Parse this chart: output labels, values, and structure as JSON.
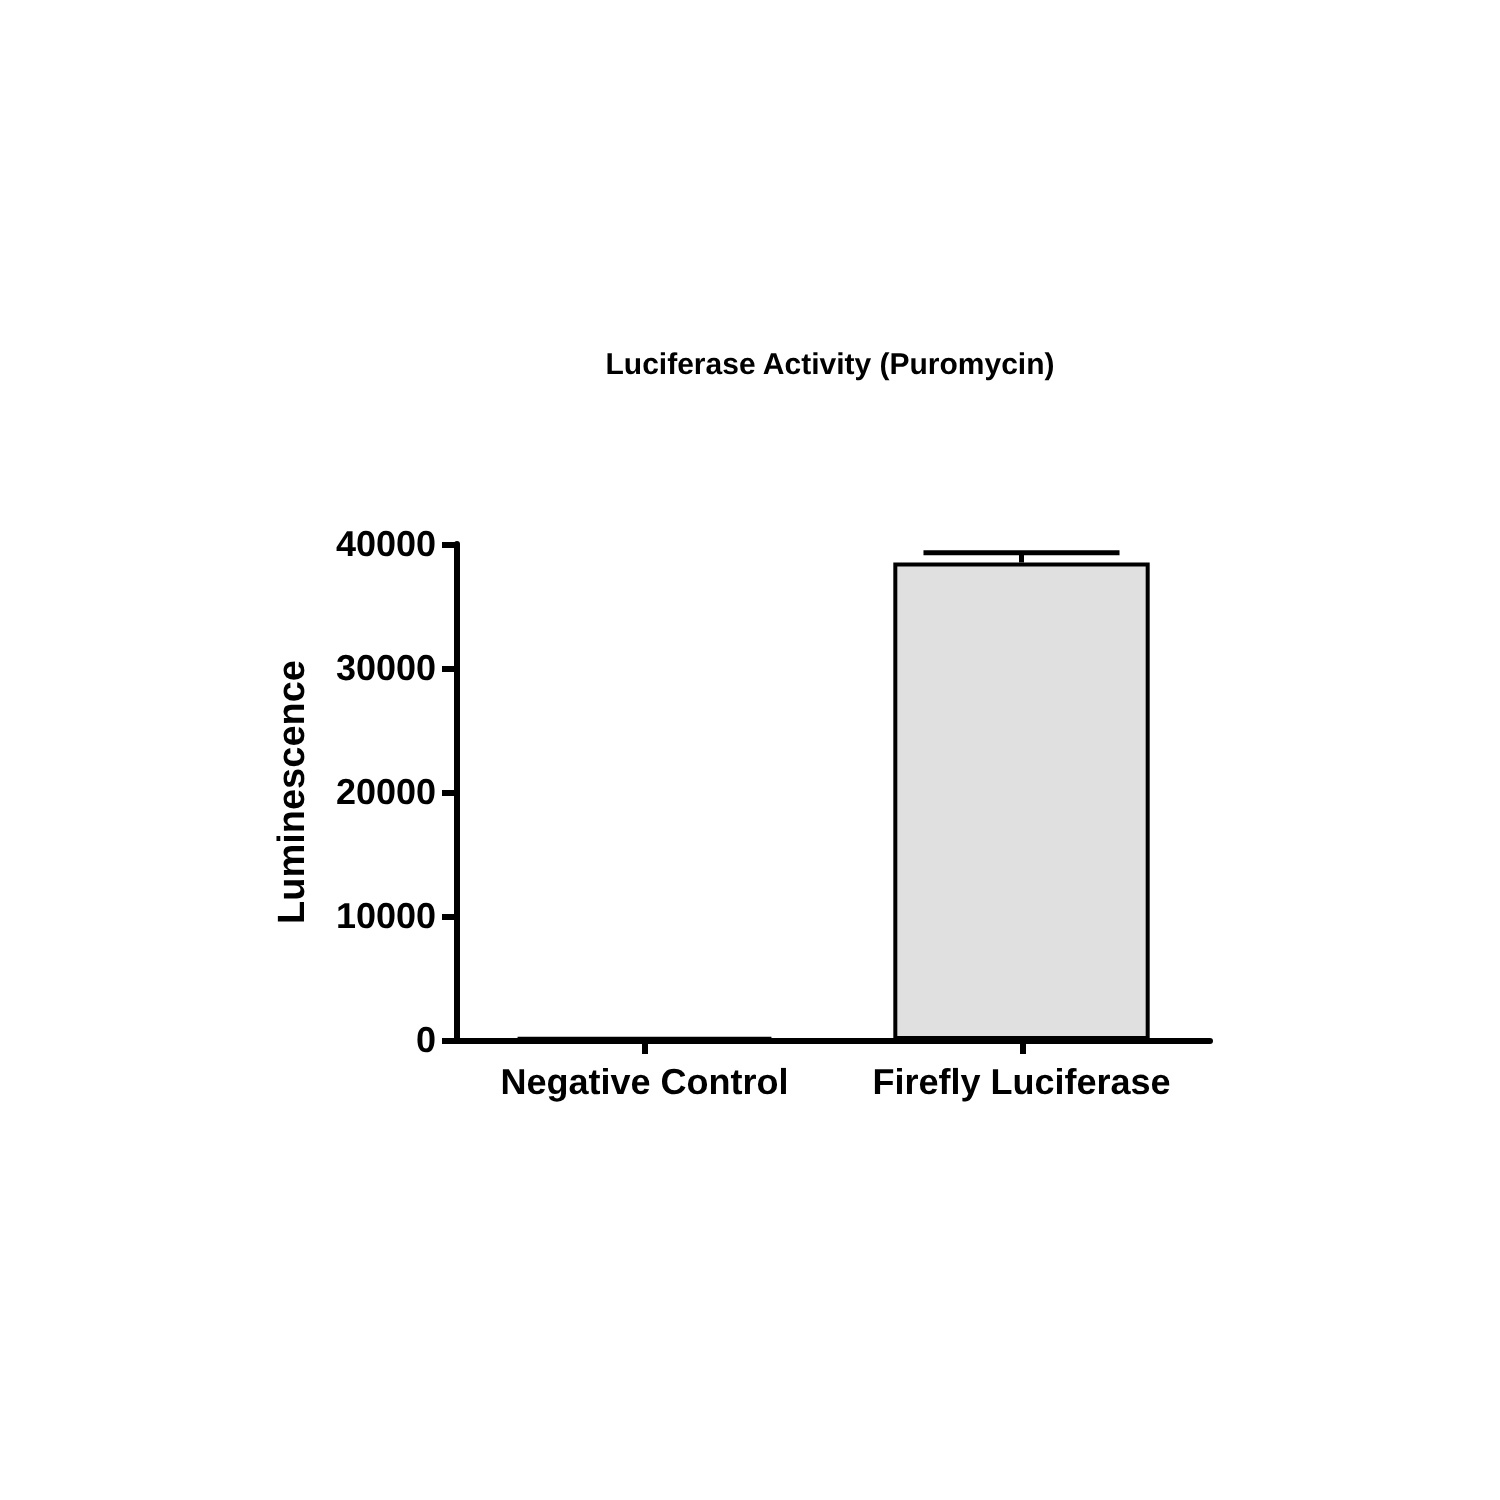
{
  "chart_data": {
    "type": "bar",
    "title": "Luciferase Activity (Puromycin)",
    "ylabel": "Luminescence",
    "categories": [
      "Negative Control",
      "Firefly Luciferase"
    ],
    "values": [
      200,
      38500
    ],
    "errors": [
      null,
      [
        38500,
        39300
      ]
    ],
    "colors": [
      "#000000",
      "#e0e0e0"
    ],
    "ylim": [
      0,
      40000
    ],
    "yticks": [
      0,
      10000,
      20000,
      30000,
      40000
    ],
    "grid": false
  }
}
